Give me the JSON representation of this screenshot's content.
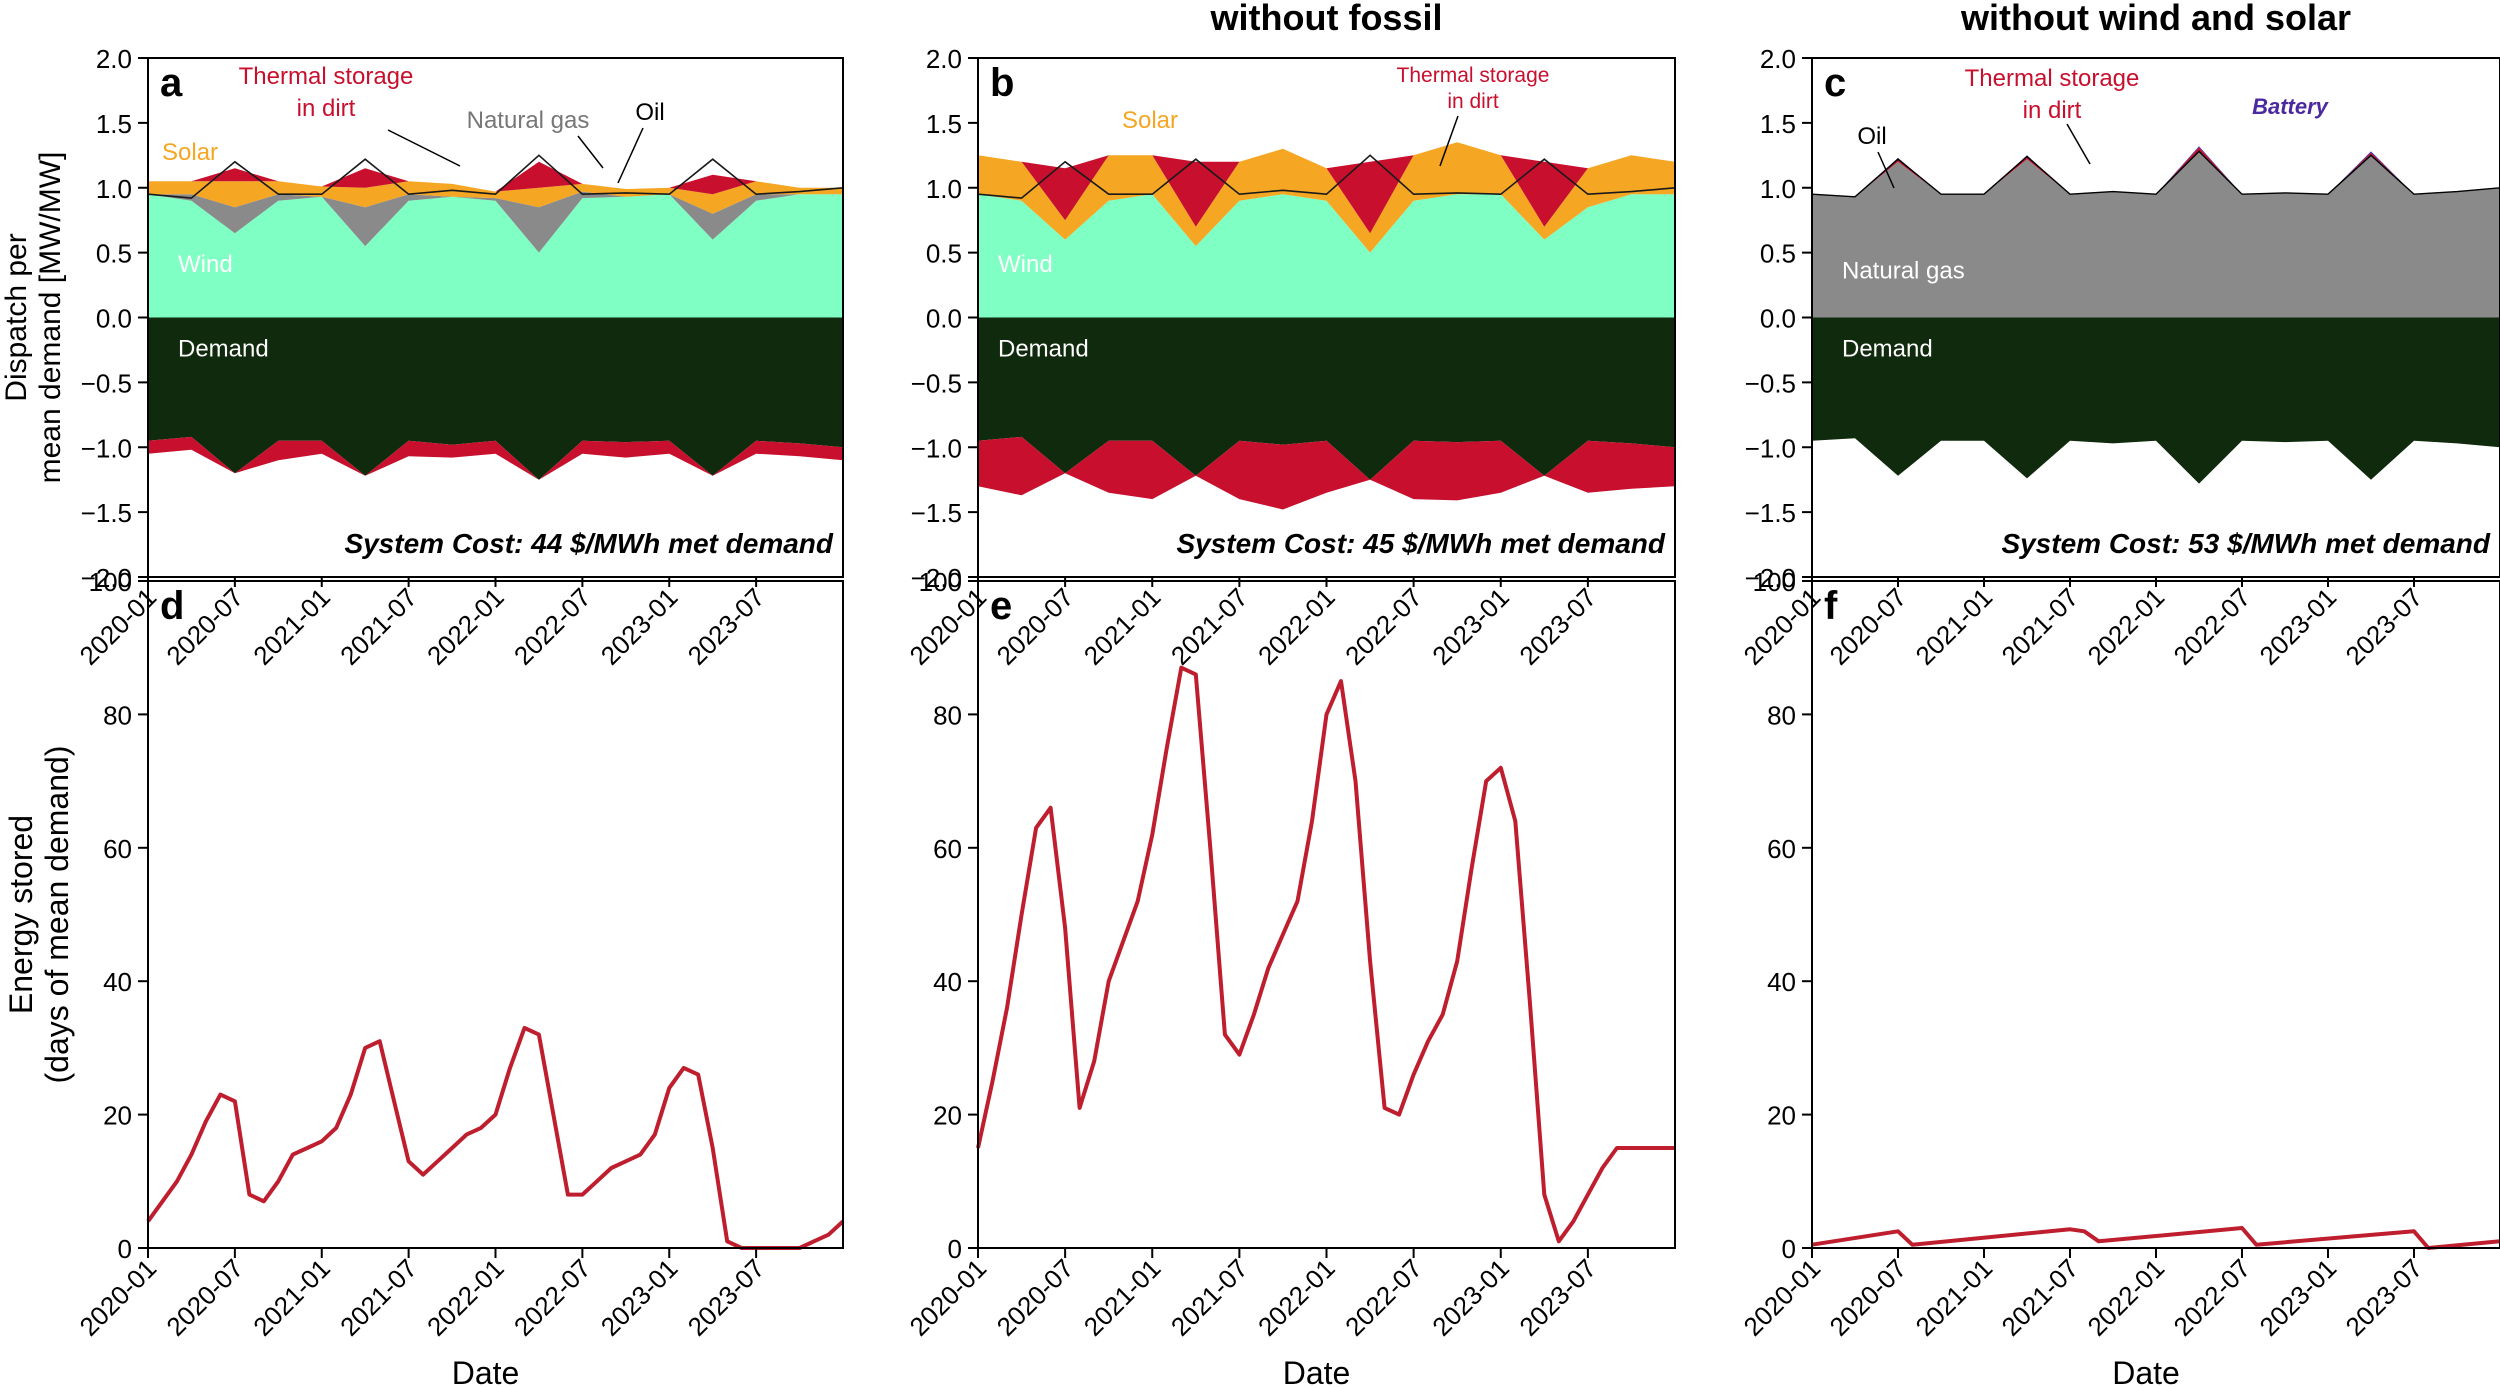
{
  "figure": {
    "column_titles": [
      "",
      "without fossil",
      "without wind and solar"
    ],
    "colors": {
      "wind": "#7fffc4",
      "solar": "#f5a623",
      "thermal": "#c8102e",
      "gas": "#8a8a8a",
      "oil": "#000000",
      "demand": "#0f2a0c",
      "battery": "#4b2aa0",
      "storage_line": "#be1e2d",
      "axis": "#000000"
    }
  },
  "chart_data": [
    {
      "panel": "a",
      "type": "area",
      "title": "",
      "xlabel": "",
      "ylabel": "Dispatch per mean demand [MW/MW]",
      "ylim": [
        -2.0,
        2.0
      ],
      "yticks": [
        "2.0",
        "1.5",
        "1.0",
        "0.5",
        "0.0",
        "−0.5",
        "−1.0",
        "−1.5",
        "−2.0"
      ],
      "xtick_labels": [
        "2020-01",
        "2020-07",
        "2021-01",
        "2021-07",
        "2022-01",
        "2022-07",
        "2023-01",
        "2023-07"
      ],
      "x": [
        0,
        3,
        6,
        9,
        12,
        15,
        18,
        21,
        24,
        27,
        30,
        33,
        36,
        39,
        42,
        45,
        48
      ],
      "series": [
        {
          "name": "Wind",
          "values": [
            0.95,
            0.9,
            0.65,
            0.9,
            0.93,
            0.55,
            0.9,
            0.93,
            0.9,
            0.5,
            0.92,
            0.93,
            0.95,
            0.6,
            0.9,
            0.95,
            0.95
          ]
        },
        {
          "name": "Solar",
          "values": [
            0.1,
            0.1,
            0.2,
            0.1,
            0.08,
            0.15,
            0.1,
            0.1,
            0.05,
            0.15,
            0.06,
            0.06,
            0.05,
            0.15,
            0.1,
            0.05,
            0.05
          ]
        },
        {
          "name": "Natural gas",
          "values": [
            0.0,
            0.05,
            0.2,
            0.05,
            0.0,
            0.3,
            0.05,
            0.0,
            0.02,
            0.35,
            0.05,
            0.0,
            0.0,
            0.2,
            0.05,
            0.0,
            0.0
          ]
        },
        {
          "name": "Thermal storage in dirt",
          "values": [
            0.0,
            0.0,
            0.1,
            0.0,
            0.0,
            0.15,
            0.0,
            0.0,
            0.0,
            0.2,
            0.0,
            0.0,
            0.0,
            0.15,
            0.0,
            0.0,
            0.0
          ]
        },
        {
          "name": "Oil",
          "values": [
            0.0,
            0.0,
            0.0,
            0.0,
            0.0,
            0.0,
            0.0,
            0.0,
            0.0,
            0.0,
            0.0,
            0.0,
            0.0,
            0.0,
            0.0,
            0.0,
            0.0
          ]
        },
        {
          "name": "Demand",
          "values": [
            -0.95,
            -0.92,
            -1.2,
            -0.95,
            -0.95,
            -1.22,
            -0.95,
            -0.98,
            -0.95,
            -1.25,
            -0.95,
            -0.96,
            -0.95,
            -1.22,
            -0.95,
            -0.97,
            -1.0
          ]
        },
        {
          "name": "Thermal storage charging",
          "values": [
            -0.1,
            -0.1,
            0.0,
            -0.15,
            -0.1,
            0.0,
            -0.12,
            -0.1,
            -0.1,
            0.0,
            -0.1,
            -0.12,
            -0.1,
            0.0,
            -0.1,
            -0.1,
            -0.1
          ]
        }
      ],
      "annotations": [
        "Thermal storage",
        "in dirt",
        "Natural gas",
        "Oil",
        "Solar",
        "Wind",
        "Demand"
      ],
      "cost_label": "System Cost: 44 $/MWh met demand"
    },
    {
      "panel": "b",
      "type": "area",
      "title": "without fossil",
      "xlabel": "",
      "ylabel": "",
      "ylim": [
        -2.0,
        2.0
      ],
      "yticks": [
        "2.0",
        "1.5",
        "1.0",
        "0.5",
        "0.0",
        "−0.5",
        "−1.0",
        "−1.5",
        "−2.0"
      ],
      "xtick_labels": [
        "2020-01",
        "2020-07",
        "2021-01",
        "2021-07",
        "2022-01",
        "2022-07",
        "2023-01",
        "2023-07"
      ],
      "x": [
        0,
        3,
        6,
        9,
        12,
        15,
        18,
        21,
        24,
        27,
        30,
        33,
        36,
        39,
        42,
        45,
        48
      ],
      "series": [
        {
          "name": "Wind",
          "values": [
            0.95,
            0.9,
            0.6,
            0.9,
            0.95,
            0.55,
            0.9,
            0.95,
            0.9,
            0.5,
            0.9,
            0.95,
            0.95,
            0.6,
            0.85,
            0.95,
            0.95
          ]
        },
        {
          "name": "Solar",
          "values": [
            0.3,
            0.3,
            0.15,
            0.35,
            0.3,
            0.15,
            0.3,
            0.35,
            0.25,
            0.15,
            0.35,
            0.4,
            0.3,
            0.1,
            0.3,
            0.3,
            0.25
          ]
        },
        {
          "name": "Thermal storage in dirt",
          "values": [
            0.0,
            0.0,
            0.4,
            0.0,
            0.0,
            0.5,
            0.0,
            0.0,
            0.0,
            0.55,
            0.0,
            0.0,
            0.0,
            0.5,
            0.0,
            0.0,
            0.0
          ]
        },
        {
          "name": "Demand",
          "values": [
            -0.95,
            -0.92,
            -1.2,
            -0.95,
            -0.95,
            -1.22,
            -0.95,
            -0.98,
            -0.95,
            -1.25,
            -0.95,
            -0.96,
            -0.95,
            -1.22,
            -0.95,
            -0.97,
            -1.0
          ]
        },
        {
          "name": "Thermal storage charging",
          "values": [
            -0.35,
            -0.45,
            0.0,
            -0.4,
            -0.45,
            0.0,
            -0.45,
            -0.5,
            -0.4,
            0.0,
            -0.45,
            -0.45,
            -0.4,
            0.0,
            -0.4,
            -0.35,
            -0.3
          ]
        }
      ],
      "annotations": [
        "Thermal storage",
        "in dirt",
        "Solar",
        "Wind",
        "Demand"
      ],
      "cost_label": "System Cost: 45 $/MWh met demand"
    },
    {
      "panel": "c",
      "type": "area",
      "title": "without wind and solar",
      "xlabel": "",
      "ylabel": "",
      "ylim": [
        -2.0,
        2.0
      ],
      "yticks": [
        "2.0",
        "1.5",
        "1.0",
        "0.5",
        "0.0",
        "−0.5",
        "−1.0",
        "−1.5",
        "−2.0"
      ],
      "xtick_labels": [
        "2020-01",
        "2020-07",
        "2021-01",
        "2021-07",
        "2022-01",
        "2022-07",
        "2023-01",
        "2023-07"
      ],
      "x": [
        0,
        3,
        6,
        9,
        12,
        15,
        18,
        21,
        24,
        27,
        30,
        33,
        36,
        39,
        42,
        45,
        48
      ],
      "series": [
        {
          "name": "Natural gas",
          "values": [
            0.95,
            0.93,
            1.2,
            0.95,
            0.95,
            1.22,
            0.95,
            0.97,
            0.95,
            1.28,
            0.95,
            0.96,
            0.95,
            1.25,
            0.95,
            0.97,
            1.0
          ]
        },
        {
          "name": "Thermal storage in dirt",
          "values": [
            0.0,
            0.0,
            0.02,
            0.0,
            0.0,
            0.02,
            0.0,
            0.0,
            0.0,
            0.03,
            0.0,
            0.0,
            0.0,
            0.02,
            0.0,
            0.0,
            0.0
          ]
        },
        {
          "name": "Battery",
          "values": [
            0.0,
            0.0,
            0.01,
            0.0,
            0.0,
            0.01,
            0.0,
            0.0,
            0.0,
            0.01,
            0.0,
            0.0,
            0.0,
            0.01,
            0.0,
            0.0,
            0.0
          ]
        },
        {
          "name": "Oil",
          "values": [
            0.0,
            0.0,
            0.0,
            0.0,
            0.0,
            0.0,
            0.0,
            0.0,
            0.0,
            0.0,
            0.0,
            0.0,
            0.0,
            0.0,
            0.0,
            0.0,
            0.0
          ]
        },
        {
          "name": "Demand",
          "values": [
            -0.95,
            -0.93,
            -1.22,
            -0.95,
            -0.95,
            -1.24,
            -0.95,
            -0.97,
            -0.95,
            -1.28,
            -0.95,
            -0.96,
            -0.95,
            -1.25,
            -0.95,
            -0.97,
            -1.0
          ]
        }
      ],
      "annotations": [
        "Thermal storage",
        "in dirt",
        "Oil",
        "Battery",
        "Natural gas",
        "Demand"
      ],
      "cost_label": "System Cost: 53 $/MWh met demand"
    },
    {
      "panel": "d",
      "type": "line",
      "title": "",
      "xlabel": "Date",
      "ylabel": "Energy stored (days of mean demand)",
      "ylim": [
        0,
        100
      ],
      "yticks": [
        "100",
        "80",
        "60",
        "40",
        "20",
        "0"
      ],
      "xtick_labels": [
        "2020-01",
        "2020-07",
        "2021-01",
        "2021-07",
        "2022-01",
        "2022-07",
        "2023-01",
        "2023-07"
      ],
      "x": [
        0,
        1,
        2,
        3,
        4,
        5,
        6,
        7,
        8,
        9,
        10,
        11,
        12,
        13,
        14,
        15,
        16,
        17,
        18,
        19,
        20,
        21,
        22,
        23,
        24,
        25,
        26,
        27,
        28,
        29,
        30,
        31,
        32,
        33,
        34,
        35,
        36,
        37,
        38,
        39,
        40,
        41,
        42,
        43,
        44,
        45,
        46,
        47,
        48
      ],
      "series": [
        {
          "name": "Energy stored",
          "values": [
            4,
            7,
            10,
            14,
            19,
            23,
            22,
            8,
            7,
            10,
            14,
            15,
            16,
            18,
            23,
            30,
            31,
            22,
            13,
            11,
            13,
            15,
            17,
            18,
            20,
            27,
            33,
            32,
            20,
            8,
            8,
            10,
            12,
            13,
            14,
            17,
            24,
            27,
            26,
            15,
            1,
            0,
            0,
            0,
            0,
            0,
            1,
            2,
            4
          ]
        }
      ]
    },
    {
      "panel": "e",
      "type": "line",
      "title": "",
      "xlabel": "Date",
      "ylabel": "",
      "ylim": [
        0,
        100
      ],
      "yticks": [
        "100",
        "80",
        "60",
        "40",
        "20",
        "0"
      ],
      "xtick_labels": [
        "2020-01",
        "2020-07",
        "2021-01",
        "2021-07",
        "2022-01",
        "2022-07",
        "2023-01",
        "2023-07"
      ],
      "x": [
        0,
        1,
        2,
        3,
        4,
        5,
        6,
        7,
        8,
        9,
        10,
        11,
        12,
        13,
        14,
        15,
        16,
        17,
        18,
        19,
        20,
        21,
        22,
        23,
        24,
        25,
        26,
        27,
        28,
        29,
        30,
        31,
        32,
        33,
        34,
        35,
        36,
        37,
        38,
        39,
        40,
        41,
        42,
        43,
        44,
        45,
        46,
        47,
        48
      ],
      "series": [
        {
          "name": "Energy stored",
          "values": [
            15,
            25,
            36,
            50,
            63,
            66,
            48,
            21,
            28,
            40,
            46,
            52,
            62,
            75,
            87,
            86,
            60,
            32,
            29,
            35,
            42,
            47,
            52,
            64,
            80,
            85,
            70,
            43,
            21,
            20,
            26,
            31,
            35,
            43,
            57,
            70,
            72,
            64,
            37,
            8,
            1,
            4,
            8,
            12,
            15,
            15,
            15,
            15,
            15
          ]
        }
      ]
    },
    {
      "panel": "f",
      "type": "line",
      "title": "",
      "xlabel": "Date",
      "ylabel": "",
      "ylim": [
        0,
        100
      ],
      "yticks": [
        "100",
        "80",
        "60",
        "40",
        "20",
        "0"
      ],
      "xtick_labels": [
        "2020-01",
        "2020-07",
        "2021-01",
        "2021-07",
        "2022-01",
        "2022-07",
        "2023-01",
        "2023-07"
      ],
      "x": [
        0,
        6,
        7,
        18,
        19,
        20,
        30,
        31,
        42,
        43,
        48
      ],
      "series": [
        {
          "name": "Energy stored",
          "values": [
            0.5,
            2.5,
            0.5,
            2.8,
            2.5,
            1,
            3,
            0.5,
            2.5,
            0,
            1
          ]
        }
      ]
    }
  ]
}
